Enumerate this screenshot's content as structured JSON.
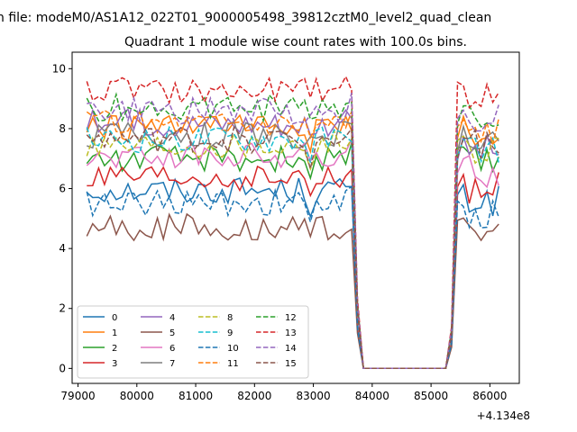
{
  "suptitle": "n file: modeM0/AS1A12_022T01_9000005498_39812cztM0_level2_quad_clean",
  "chart_data": {
    "type": "line",
    "title": "Quadrant 1 module wise count rates with 100.0s bins.",
    "xlabel": "",
    "ylabel": "",
    "x_offset_label": "+4.134e8",
    "xlim": [
      78900,
      86500
    ],
    "ylim": [
      -0.5,
      10.55
    ],
    "x_ticks": [
      79000,
      80000,
      81000,
      82000,
      83000,
      84000,
      85000,
      86000
    ],
    "x_tick_labels": [
      "79000",
      "80000",
      "81000",
      "82000",
      "83000",
      "84000",
      "85000",
      "86000"
    ],
    "y_ticks": [
      0,
      2,
      4,
      6,
      8,
      10
    ],
    "y_tick_labels": [
      "0",
      "2",
      "4",
      "6",
      "8",
      "10"
    ],
    "legend_position": "lower-left",
    "legend_columns": 4,
    "x_start": 79150,
    "x_step": 100,
    "series": [
      {
        "name": "0",
        "color": "#1f77b4",
        "dash": "solid",
        "level": 5.95,
        "gap": 5.6
      },
      {
        "name": "1",
        "color": "#ff7f0e",
        "dash": "solid",
        "level": 8.0,
        "gap": 7.9
      },
      {
        "name": "2",
        "color": "#2ca02c",
        "dash": "solid",
        "level": 7.0,
        "gap": 6.9
      },
      {
        "name": "3",
        "color": "#d62728",
        "dash": "solid",
        "level": 6.3,
        "gap": 6.0
      },
      {
        "name": "4",
        "color": "#9467bd",
        "dash": "solid",
        "level": 8.2,
        "gap": 7.3
      },
      {
        "name": "5",
        "color": "#8c564b",
        "dash": "solid",
        "level": 4.7,
        "gap": 4.6
      },
      {
        "name": "6",
        "color": "#e377c2",
        "dash": "solid",
        "level": 7.1,
        "gap": 6.6
      },
      {
        "name": "7",
        "color": "#7f7f7f",
        "dash": "solid",
        "level": 7.8,
        "gap": 7.7
      },
      {
        "name": "8",
        "color": "#bcbd22",
        "dash": "dashed",
        "level": 7.5,
        "gap": 7.4
      },
      {
        "name": "9",
        "color": "#17becf",
        "dash": "dashed",
        "level": 7.6,
        "gap": 7.3
      },
      {
        "name": "10",
        "color": "#1f77b4",
        "dash": "dashed",
        "level": 5.5,
        "gap": 5.1
      },
      {
        "name": "11",
        "color": "#ff7f0e",
        "dash": "dashed",
        "level": 8.2,
        "gap": 8.0
      },
      {
        "name": "12",
        "color": "#2ca02c",
        "dash": "dashed",
        "level": 8.7,
        "gap": 8.5
      },
      {
        "name": "13",
        "color": "#d62728",
        "dash": "dashed",
        "level": 9.3,
        "gap": 9.2
      },
      {
        "name": "14",
        "color": "#9467bd",
        "dash": "dashed",
        "level": 8.6,
        "gap": 8.4
      },
      {
        "name": "15",
        "color": "#8c564b",
        "dash": "dashed",
        "level": 7.6,
        "gap": 7.5
      }
    ]
  }
}
